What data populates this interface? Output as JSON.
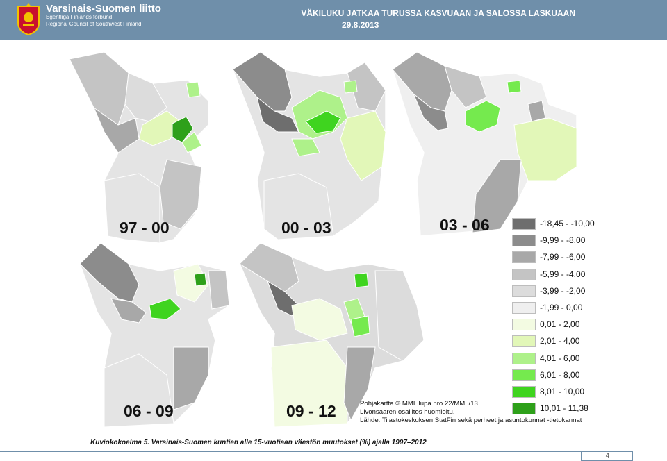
{
  "header": {
    "org_name": "Varsinais-Suomen liitto",
    "org_name_sv": "Egentliga Finlands förbund",
    "org_name_en": "Regional Council of Southwest Finland",
    "title": "VÄKILUKU JATKAA TURUSSA KASVUAAN JA SALOSSA LASKUAAN",
    "date": "29.8.2013"
  },
  "maps": [
    {
      "label": "97 - 00"
    },
    {
      "label": "00 - 03"
    },
    {
      "label": "03 - 06"
    },
    {
      "label": "06 - 09"
    },
    {
      "label": "09 - 12"
    }
  ],
  "legend": [
    {
      "range": "-18,45 - -10,00",
      "color": "#6e6e6e"
    },
    {
      "range": "-9,99 - -8,00",
      "color": "#8c8c8c"
    },
    {
      "range": "-7,99 - -6,00",
      "color": "#a8a8a8"
    },
    {
      "range": "-5,99 - -4,00",
      "color": "#c4c4c4"
    },
    {
      "range": "-3,99 - -2,00",
      "color": "#dcdcdc"
    },
    {
      "range": "-1,99 - 0,00",
      "color": "#efefef"
    },
    {
      "range": "0,01 - 2,00",
      "color": "#f3fbe2"
    },
    {
      "range": "2,01 - 4,00",
      "color": "#e2f7b8"
    },
    {
      "range": "4,01 - 6,00",
      "color": "#aef18a"
    },
    {
      "range": "6,01 - 8,00",
      "color": "#75ea4e"
    },
    {
      "range": "8,01 - 10,00",
      "color": "#3fd41f"
    },
    {
      "range": "10,01 - 11,38",
      "color": "#2ea01a"
    }
  ],
  "source": {
    "line1": "Pohjakartta © MML lupa nro 22/MML/13",
    "line2": "Livonsaaren osaliitos huomioitu.",
    "line3": "Lähde: Tilastokeskuksen StatFin sekä perheet ja asuntokunnat -tietokannat"
  },
  "caption": "Kuviokokoelma 5. Varsinais-Suomen kuntien alle 15-vuotiaan väestön muutokset (%) ajalla 1997–2012",
  "page_number": "4"
}
